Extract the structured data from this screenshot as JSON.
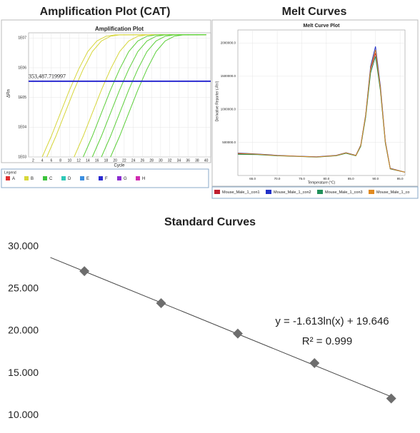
{
  "chart_data": [
    {
      "type": "line",
      "title": "Amplification Plot (CAT)",
      "subtitle": "Amplification Plot",
      "xlabel": "Cycle",
      "ylabel": "ΔRn",
      "ylog": true,
      "xlim": [
        1,
        41
      ],
      "xticks": [
        2,
        4,
        6,
        8,
        10,
        12,
        14,
        16,
        18,
        20,
        22,
        24,
        26,
        28,
        30,
        32,
        34,
        36,
        38,
        40
      ],
      "ylim": [
        1000,
        15000000
      ],
      "yticks": [
        {
          "value": 1000,
          "label": "1E03"
        },
        {
          "value": 10000,
          "label": "1E04"
        },
        {
          "value": 100000,
          "label": "1E05"
        },
        {
          "value": 1000000,
          "label": "1E06"
        },
        {
          "value": 10000000,
          "label": "1E07"
        }
      ],
      "threshold": {
        "value": 353487.719997,
        "label": "353,487.719997",
        "color": "#2a2ad0"
      },
      "legend_title": "Legend",
      "legend": [
        {
          "name": "A",
          "color": "#e03030"
        },
        {
          "name": "B",
          "color": "#d8d83a"
        },
        {
          "name": "C",
          "color": "#3cc43c"
        },
        {
          "name": "D",
          "color": "#2ec8b8"
        },
        {
          "name": "E",
          "color": "#3a8ee0"
        },
        {
          "name": "F",
          "color": "#2a2ad0"
        },
        {
          "name": "G",
          "color": "#8a2ad0"
        },
        {
          "name": "H",
          "color": "#d02ab0"
        }
      ],
      "series": [
        {
          "color": "#d6d63a",
          "x": [
            4,
            6,
            8,
            10,
            12,
            14,
            16,
            18,
            20,
            40
          ],
          "values": [
            1000,
            5000,
            30000,
            180000,
            900000,
            3500000,
            8000000,
            11500000,
            12800000,
            13000000
          ]
        },
        {
          "color": "#d6d63a",
          "x": [
            5,
            7,
            9,
            11,
            13,
            15,
            17,
            19,
            21,
            40
          ],
          "values": [
            1000,
            5000,
            30000,
            180000,
            900000,
            3500000,
            8000000,
            11500000,
            12800000,
            13000000
          ]
        },
        {
          "color": "#d6d63a",
          "x": [
            11,
            13,
            15,
            17,
            19,
            21,
            23,
            25,
            27,
            40
          ],
          "values": [
            1000,
            5000,
            30000,
            180000,
            900000,
            3500000,
            8000000,
            11500000,
            12800000,
            13000000
          ]
        },
        {
          "color": "#5ccf3a",
          "x": [
            13,
            15,
            17,
            19,
            21,
            23,
            25,
            27,
            29,
            40
          ],
          "values": [
            1000,
            5000,
            30000,
            180000,
            900000,
            3500000,
            8000000,
            11500000,
            12800000,
            13000000
          ]
        },
        {
          "color": "#5ccf3a",
          "x": [
            15,
            17,
            19,
            21,
            23,
            25,
            27,
            29,
            31,
            40
          ],
          "values": [
            1000,
            5000,
            30000,
            180000,
            900000,
            3500000,
            8000000,
            11500000,
            12800000,
            13000000
          ]
        },
        {
          "color": "#5ccf3a",
          "x": [
            17,
            19,
            21,
            23,
            25,
            27,
            29,
            31,
            33,
            40
          ],
          "values": [
            1000,
            5000,
            30000,
            180000,
            900000,
            3500000,
            8000000,
            11500000,
            12800000,
            13000000
          ]
        },
        {
          "color": "#5ccf3a",
          "x": [
            19,
            21,
            23,
            25,
            27,
            29,
            31,
            33,
            35,
            40
          ],
          "values": [
            1000,
            5000,
            30000,
            180000,
            900000,
            3500000,
            8000000,
            11500000,
            12800000,
            13000000
          ]
        }
      ]
    },
    {
      "type": "line",
      "title": "Melt Curves",
      "subtitle": "Melt Curve Plot",
      "xlabel": "Temperature (°C)",
      "ylabel": "Derivative Reporter (-Rn')",
      "xlim": [
        62,
        96
      ],
      "xticks": [
        {
          "value": 65,
          "label": "65.0"
        },
        {
          "value": 70,
          "label": "70.0"
        },
        {
          "value": 75,
          "label": "75.0"
        },
        {
          "value": 80,
          "label": "80.0"
        },
        {
          "value": 85,
          "label": "85.0"
        },
        {
          "value": 90,
          "label": "90.0"
        },
        {
          "value": 95,
          "label": "95.0"
        }
      ],
      "ylim": [
        0,
        2200000
      ],
      "yticks": [
        {
          "value": 500000,
          "label": "500000.0"
        },
        {
          "value": 1000000,
          "label": "1000000.0"
        },
        {
          "value": 1500000,
          "label": "1500000.0"
        },
        {
          "value": 2000000,
          "label": "2000000.0"
        }
      ],
      "x": [
        62,
        66,
        70,
        74,
        78,
        82,
        84,
        86,
        87,
        88,
        89,
        90,
        91,
        92,
        93,
        96
      ],
      "series": [
        {
          "name": "Mouse_Male_1_con1",
          "color": "#c02030",
          "values": [
            330000,
            320000,
            300000,
            290000,
            280000,
            300000,
            340000,
            300000,
            450000,
            900000,
            1600000,
            1850000,
            1300000,
            500000,
            100000,
            50000
          ]
        },
        {
          "name": "Mouse_Male_1_con2",
          "color": "#2030c8",
          "values": [
            340000,
            325000,
            305000,
            292000,
            283000,
            305000,
            345000,
            305000,
            460000,
            920000,
            1650000,
            1950000,
            1350000,
            520000,
            110000,
            50000
          ]
        },
        {
          "name": "Mouse_Male_1_con3",
          "color": "#20905a",
          "values": [
            320000,
            315000,
            298000,
            288000,
            278000,
            298000,
            335000,
            298000,
            440000,
            880000,
            1550000,
            1800000,
            1280000,
            490000,
            100000,
            50000
          ]
        },
        {
          "name": "Mouse_Male_1_co",
          "color": "#e08a20",
          "values": [
            335000,
            322000,
            302000,
            291000,
            281000,
            302000,
            342000,
            302000,
            455000,
            910000,
            1620000,
            1900000,
            1320000,
            510000,
            105000,
            50000
          ]
        }
      ]
    },
    {
      "type": "scatter",
      "title": "Standard Curves",
      "xlog": true,
      "xlim": [
        0.003,
        200
      ],
      "ylim": [
        8.5,
        31
      ],
      "yticks": [
        {
          "value": 10,
          "label": "10.000"
        },
        {
          "value": 15,
          "label": "15.000"
        },
        {
          "value": 20,
          "label": "20.000"
        },
        {
          "value": 25,
          "label": "25.000"
        },
        {
          "value": 30,
          "label": "30.000"
        }
      ],
      "x": [
        0.01,
        0.1,
        1,
        10,
        100
      ],
      "values": [
        27.1,
        23.3,
        19.7,
        16.2,
        12.0
      ],
      "color": "#6d6d6d",
      "trendline": {
        "slope": -1.613,
        "intercept": 19.646,
        "label": "y = -1.613ln(x) + 19.646"
      },
      "r_squared": {
        "value": 0.999,
        "label": "R² = 0.999"
      }
    }
  ]
}
